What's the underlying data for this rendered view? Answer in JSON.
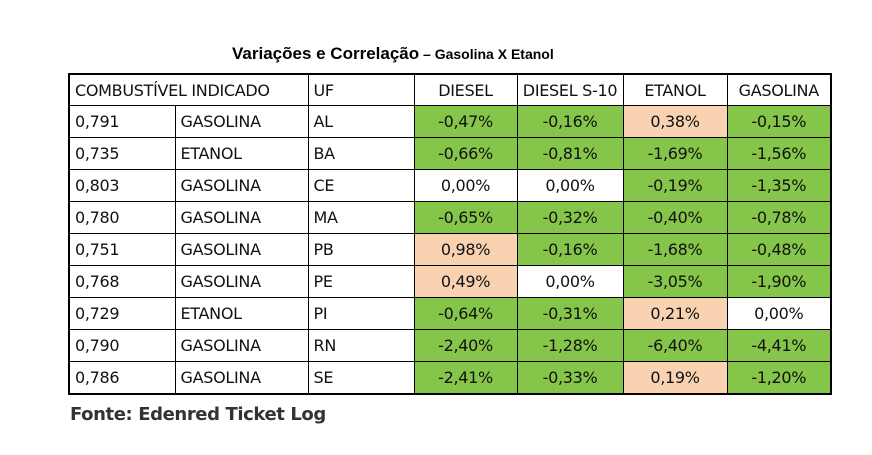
{
  "title": {
    "main": "Variações e Correlação",
    "sub": " – Gasolina X Etanol"
  },
  "table": {
    "headers": [
      "COMBUSTÍVEL INDICADO",
      "UF",
      "DIESEL",
      "DIESEL S-10",
      "ETANOL",
      "GASOLINA"
    ],
    "rows": [
      {
        "ratio": "0,791",
        "fuel": "GASOLINA",
        "uf": "AL",
        "diesel": "-0,47%",
        "diesel_s10": "-0,16%",
        "etanol": "0,38%",
        "gasolina": "-0,15%"
      },
      {
        "ratio": "0,735",
        "fuel": "ETANOL",
        "uf": "BA",
        "diesel": "-0,66%",
        "diesel_s10": "-0,81%",
        "etanol": "-1,69%",
        "gasolina": "-1,56%"
      },
      {
        "ratio": "0,803",
        "fuel": "GASOLINA",
        "uf": "CE",
        "diesel": "0,00%",
        "diesel_s10": "0,00%",
        "etanol": "-0,19%",
        "gasolina": "-1,35%"
      },
      {
        "ratio": "0,780",
        "fuel": "GASOLINA",
        "uf": "MA",
        "diesel": "-0,65%",
        "diesel_s10": "-0,32%",
        "etanol": "-0,40%",
        "gasolina": "-0,78%"
      },
      {
        "ratio": "0,751",
        "fuel": "GASOLINA",
        "uf": "PB",
        "diesel": "0,98%",
        "diesel_s10": "-0,16%",
        "etanol": "-1,68%",
        "gasolina": "-0,48%"
      },
      {
        "ratio": "0,768",
        "fuel": "GASOLINA",
        "uf": "PE",
        "diesel": "0,49%",
        "diesel_s10": "0,00%",
        "etanol": "-3,05%",
        "gasolina": "-1,90%"
      },
      {
        "ratio": "0,729",
        "fuel": "ETANOL",
        "uf": "PI",
        "diesel": "-0,64%",
        "diesel_s10": "-0,31%",
        "etanol": "0,21%",
        "gasolina": "0,00%"
      },
      {
        "ratio": "0,790",
        "fuel": "GASOLINA",
        "uf": "RN",
        "diesel": "-2,40%",
        "diesel_s10": "-1,28%",
        "etanol": "-6,40%",
        "gasolina": "-4,41%"
      },
      {
        "ratio": "0,786",
        "fuel": "GASOLINA",
        "uf": "SE",
        "diesel": "-2,41%",
        "diesel_s10": "-0,33%",
        "etanol": "0,19%",
        "gasolina": "-1,20%"
      }
    ]
  },
  "colors": {
    "decrease": "#84c54a",
    "increase": "#f9d3b1",
    "no_change": "#ffffff"
  },
  "source": "Fonte: Edenred Ticket Log"
}
